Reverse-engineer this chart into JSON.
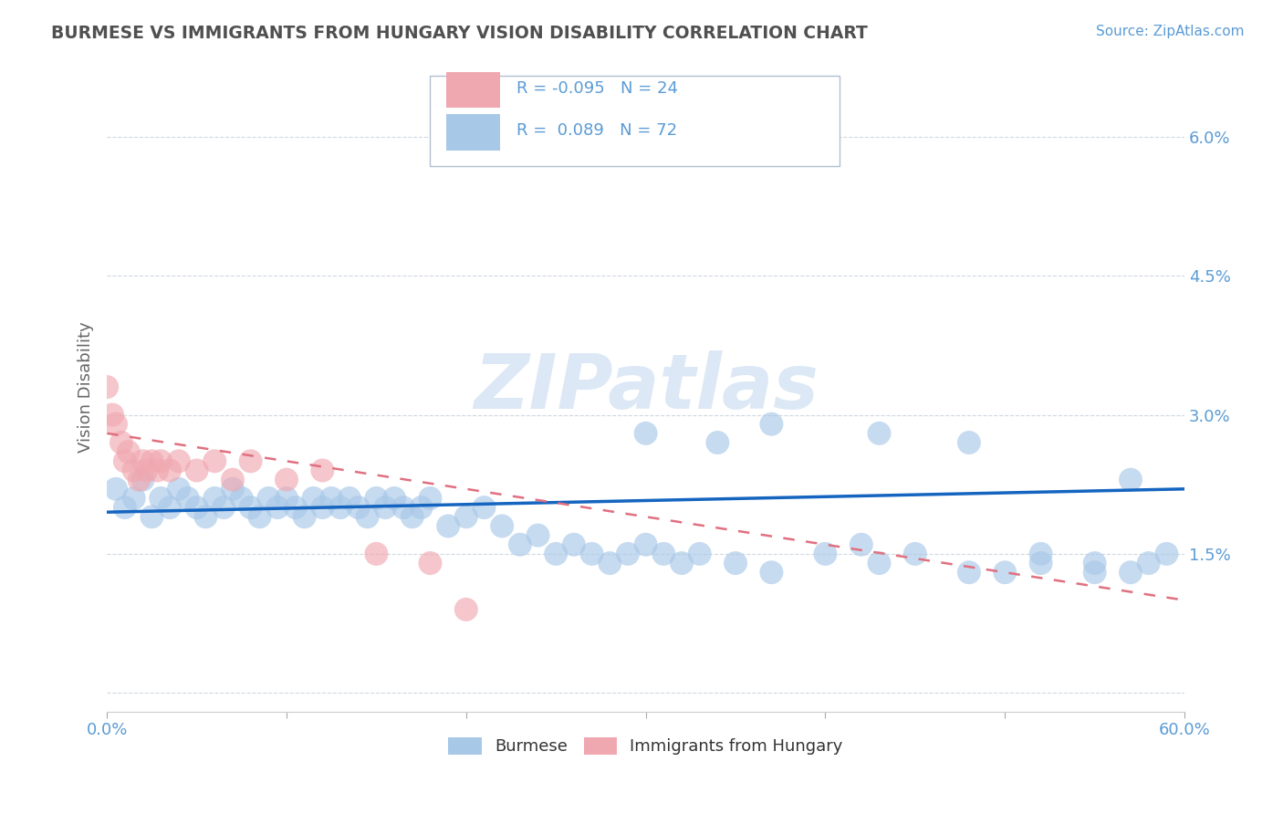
{
  "title": "BURMESE VS IMMIGRANTS FROM HUNGARY VISION DISABILITY CORRELATION CHART",
  "source_text": "Source: ZipAtlas.com",
  "ylabel": "Vision Disability",
  "xlim": [
    0.0,
    0.6
  ],
  "ylim": [
    -0.002,
    0.068
  ],
  "yticks": [
    0.0,
    0.015,
    0.03,
    0.045,
    0.06
  ],
  "ytick_labels": [
    "",
    "1.5%",
    "3.0%",
    "4.5%",
    "6.0%"
  ],
  "xtick_positions": [
    0.0,
    0.1,
    0.2,
    0.3,
    0.4,
    0.5,
    0.6
  ],
  "xtick_labels": [
    "0.0%",
    "",
    "",
    "",
    "",
    "",
    "60.0%"
  ],
  "legend_r1": "R =  0.089",
  "legend_n1": "N = 72",
  "legend_r2": "R = -0.095",
  "legend_n2": "N = 24",
  "legend_label1": "Burmese",
  "legend_label2": "Immigrants from Hungary",
  "blue_color": "#a8c8e8",
  "pink_color": "#f0a8b0",
  "blue_line_color": "#1565c0",
  "pink_line_color": "#e07080",
  "title_color": "#505050",
  "axis_label_color": "#5b9bd5",
  "watermark_color": "#dce8f5",
  "background_color": "#ffffff",
  "grid_color": "#d0d8e0",
  "blue_scatter_x": [
    0.005,
    0.01,
    0.015,
    0.02,
    0.025,
    0.03,
    0.035,
    0.04,
    0.045,
    0.05,
    0.055,
    0.06,
    0.065,
    0.07,
    0.075,
    0.08,
    0.085,
    0.09,
    0.095,
    0.1,
    0.105,
    0.11,
    0.115,
    0.12,
    0.125,
    0.13,
    0.135,
    0.14,
    0.145,
    0.15,
    0.155,
    0.16,
    0.165,
    0.17,
    0.175,
    0.18,
    0.19,
    0.2,
    0.21,
    0.22,
    0.23,
    0.24,
    0.25,
    0.26,
    0.27,
    0.28,
    0.29,
    0.3,
    0.31,
    0.32,
    0.33,
    0.35,
    0.37,
    0.4,
    0.42,
    0.43,
    0.45,
    0.48,
    0.5,
    0.52,
    0.55,
    0.57,
    0.58,
    0.3,
    0.34,
    0.37,
    0.43,
    0.48,
    0.52,
    0.55,
    0.57,
    0.59
  ],
  "blue_scatter_y": [
    0.022,
    0.02,
    0.021,
    0.023,
    0.019,
    0.021,
    0.02,
    0.022,
    0.021,
    0.02,
    0.019,
    0.021,
    0.02,
    0.022,
    0.021,
    0.02,
    0.019,
    0.021,
    0.02,
    0.021,
    0.02,
    0.019,
    0.021,
    0.02,
    0.021,
    0.02,
    0.021,
    0.02,
    0.019,
    0.021,
    0.02,
    0.021,
    0.02,
    0.019,
    0.02,
    0.021,
    0.018,
    0.019,
    0.02,
    0.018,
    0.016,
    0.017,
    0.015,
    0.016,
    0.015,
    0.014,
    0.015,
    0.016,
    0.015,
    0.014,
    0.015,
    0.014,
    0.013,
    0.015,
    0.016,
    0.014,
    0.015,
    0.013,
    0.013,
    0.014,
    0.013,
    0.013,
    0.014,
    0.028,
    0.027,
    0.029,
    0.028,
    0.027,
    0.015,
    0.014,
    0.023,
    0.015
  ],
  "pink_scatter_x": [
    0.0,
    0.003,
    0.005,
    0.008,
    0.01,
    0.012,
    0.015,
    0.018,
    0.02,
    0.022,
    0.025,
    0.028,
    0.03,
    0.035,
    0.04,
    0.05,
    0.06,
    0.07,
    0.08,
    0.1,
    0.12,
    0.15,
    0.18,
    0.2
  ],
  "pink_scatter_y": [
    0.033,
    0.03,
    0.029,
    0.027,
    0.025,
    0.026,
    0.024,
    0.023,
    0.025,
    0.024,
    0.025,
    0.024,
    0.025,
    0.024,
    0.025,
    0.024,
    0.025,
    0.023,
    0.025,
    0.023,
    0.024,
    0.015,
    0.014,
    0.009
  ],
  "blue_trend_x": [
    0.0,
    0.6
  ],
  "blue_trend_y": [
    0.0195,
    0.022
  ],
  "pink_trend_x": [
    0.0,
    0.6
  ],
  "pink_trend_y": [
    0.028,
    0.01
  ]
}
